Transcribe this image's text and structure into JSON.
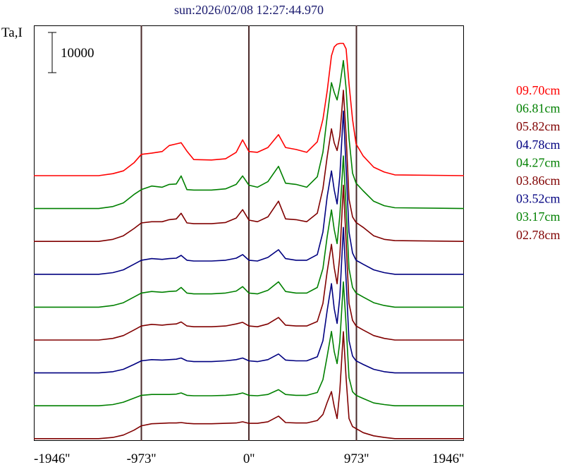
{
  "chart_data": {
    "type": "line",
    "title": "sun:2026/02/08 12:27:44.970",
    "ylabel": "Ta,I",
    "scale_bar_label": "10000",
    "scale_bar_value": 10000,
    "xlim": [
      -1946,
      1946
    ],
    "x_ticks": [
      {
        "value": -1946,
        "label": "-1946''"
      },
      {
        "value": -973,
        "label": "-973''"
      },
      {
        "value": 0,
        "label": "0''"
      },
      {
        "value": 973,
        "label": "973''"
      },
      {
        "value": 1946,
        "label": "1946''"
      }
    ],
    "vertical_lines": [
      -973,
      0,
      973
    ],
    "layout_note": "traces stacked with constant vertical offset",
    "x": [
      -1946,
      -1359,
      -1231,
      -1136,
      -1040,
      -973,
      -880,
      -785,
      -721,
      -657,
      -613,
      -561,
      -498,
      -338,
      -211,
      -115,
      -57,
      0,
      77,
      172,
      268,
      332,
      427,
      523,
      619,
      670,
      708,
      747,
      772,
      798,
      823,
      855,
      880,
      906,
      938,
      970,
      1034,
      1129,
      1225,
      1321,
      1946
    ],
    "series": [
      {
        "name": "09.70cm",
        "color": "#ff0000",
        "values": [
          0,
          0,
          500,
          1200,
          3200,
          5300,
          5600,
          6000,
          7500,
          7900,
          8200,
          6100,
          4000,
          3900,
          4200,
          5800,
          8900,
          6000,
          5800,
          7000,
          10200,
          7000,
          6500,
          5800,
          8400,
          14000,
          21000,
          29800,
          32000,
          32700,
          32900,
          32900,
          31500,
          22800,
          14000,
          7900,
          4900,
          2100,
          900,
          200,
          0
        ]
      },
      {
        "name": "06.81cm",
        "color": "#008000",
        "values": [
          0,
          0,
          500,
          1400,
          3500,
          4700,
          5600,
          5300,
          6000,
          6100,
          8100,
          4700,
          4600,
          4600,
          4900,
          6000,
          8100,
          5800,
          5300,
          6700,
          10500,
          6300,
          6000,
          5300,
          7900,
          14000,
          22800,
          31300,
          28900,
          27000,
          30600,
          36800,
          29800,
          17500,
          8800,
          6300,
          4400,
          1800,
          700,
          200,
          0
        ]
      },
      {
        "name": "05.82cm",
        "color": "#800000",
        "values": [
          0,
          0,
          500,
          1400,
          3200,
          4600,
          4900,
          4900,
          5400,
          5600,
          7000,
          4600,
          4400,
          4400,
          4700,
          5800,
          7900,
          5300,
          4900,
          6100,
          10000,
          5600,
          5400,
          4900,
          7000,
          13100,
          21000,
          28000,
          24500,
          22600,
          26300,
          37600,
          26300,
          10500,
          6100,
          4700,
          3500,
          1400,
          500,
          200,
          0
        ]
      },
      {
        "name": "04.78cm",
        "color": "#000080",
        "values": [
          0,
          0,
          400,
          1100,
          2500,
          3500,
          3900,
          3700,
          3900,
          4000,
          4700,
          3500,
          3300,
          3300,
          3500,
          4000,
          4900,
          3500,
          3300,
          4200,
          6100,
          3900,
          3500,
          3500,
          4900,
          10500,
          19300,
          25700,
          21000,
          17500,
          24500,
          40600,
          26300,
          10500,
          5300,
          3500,
          2500,
          1100,
          400,
          0,
          0
        ]
      },
      {
        "name": "04.27cm",
        "color": "#008000",
        "values": [
          0,
          0,
          400,
          1100,
          2500,
          3500,
          3900,
          3700,
          3900,
          4000,
          4900,
          3500,
          3300,
          3300,
          3500,
          4000,
          5100,
          3500,
          3300,
          4200,
          6300,
          3900,
          3500,
          3500,
          4900,
          9600,
          17500,
          24200,
          19300,
          15800,
          22800,
          37600,
          24500,
          9600,
          4900,
          3500,
          2500,
          1100,
          400,
          0,
          0
        ]
      },
      {
        "name": "03.86cm",
        "color": "#800000",
        "values": [
          0,
          0,
          400,
          1100,
          2500,
          3500,
          3900,
          3700,
          3900,
          4000,
          4500,
          3500,
          3300,
          3300,
          3500,
          4000,
          4400,
          3500,
          3300,
          4000,
          5600,
          3700,
          3500,
          3500,
          4600,
          9100,
          17000,
          23800,
          18000,
          14000,
          21000,
          38500,
          24500,
          9100,
          4900,
          3500,
          2500,
          1100,
          400,
          0,
          0
        ]
      },
      {
        "name": "03.52cm",
        "color": "#000080",
        "values": [
          0,
          0,
          300,
          900,
          2100,
          3000,
          3300,
          3200,
          3300,
          3400,
          3700,
          3000,
          2800,
          2800,
          3000,
          3300,
          3700,
          3000,
          2800,
          3300,
          4700,
          3200,
          3000,
          3000,
          4000,
          8000,
          15500,
          22200,
          16000,
          12300,
          19000,
          36200,
          23000,
          8000,
          4200,
          3000,
          2100,
          900,
          300,
          0,
          0
        ]
      },
      {
        "name": "03.17cm",
        "color": "#008000",
        "values": [
          0,
          0,
          300,
          900,
          1900,
          2600,
          2800,
          2800,
          2800,
          2900,
          3200,
          2600,
          2500,
          2500,
          2600,
          2800,
          3200,
          2600,
          2500,
          2800,
          4000,
          2800,
          2600,
          2600,
          3300,
          6500,
          12300,
          18500,
          13500,
          10500,
          16000,
          30800,
          20000,
          7000,
          3500,
          2600,
          1800,
          700,
          300,
          0,
          0
        ]
      },
      {
        "name": "02.78cm",
        "color": "#800000",
        "values": [
          0,
          0,
          300,
          900,
          2100,
          3200,
          3700,
          3800,
          3900,
          3900,
          4000,
          3800,
          3700,
          3700,
          3800,
          3900,
          4200,
          3800,
          3800,
          4200,
          5600,
          4000,
          3900,
          3900,
          4500,
          6000,
          9000,
          11700,
          8000,
          5000,
          12000,
          26600,
          15000,
          5000,
          3000,
          2500,
          1500,
          700,
          300,
          0,
          0
        ]
      }
    ]
  }
}
